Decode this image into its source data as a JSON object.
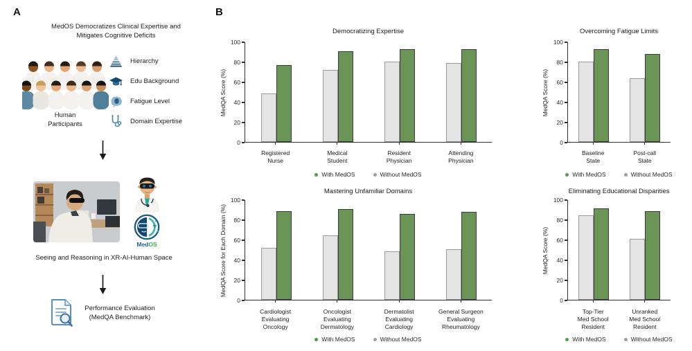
{
  "panel_a": {
    "label": "A",
    "title": "MedOS Democratizes Clinical Expertise and\nMitigates Cognitive Deficits",
    "participants_label": "Human\nParticipants",
    "factors": [
      {
        "icon": "hierarchy-pyramid-icon",
        "label": "Hierarchy"
      },
      {
        "icon": "graduation-cap-icon",
        "label": "Edu Background"
      },
      {
        "icon": "brain-icon",
        "label": "Fatigue Level"
      },
      {
        "icon": "stethoscope-icon",
        "label": "Domain Expertise"
      }
    ],
    "medos_logo": {
      "icon": "medos-logo-icon",
      "med": "Med",
      "os": "OS"
    },
    "xr_caption": "Seeing and Reasoning in XR-AI-Human Space",
    "evaluation_caption": "Performance Evaluation\n(MedQA Benchmark)"
  },
  "panel_b": {
    "label": "B"
  },
  "colors": {
    "with_medos_fill": "#6b9556",
    "with_medos_border": "#3d3d3d",
    "without_medos_fill": "#e4e4e4",
    "without_medos_border": "#9a9a9a",
    "legend_with_dot": "#559a4f",
    "legend_without_dot": "#9e9e9e",
    "axis": "#2e2e2e"
  },
  "chart_data": [
    {
      "type": "bar",
      "title": "Democratizing Expertise",
      "xlabel": "",
      "ylabel": "MedQA Score (%)",
      "ylim": [
        0,
        100
      ],
      "yticks": [
        0,
        20,
        40,
        60,
        80,
        100
      ],
      "grid": false,
      "legend_position": "bottom",
      "legend": [
        "With MedOS",
        "Without MedOS"
      ],
      "categories": [
        "Registered\nNurse",
        "Medical\nStudent",
        "Resident\nPhysician",
        "Attending\nPhysician"
      ],
      "series": [
        {
          "name": "Without MedOS",
          "values": [
            49,
            72,
            81,
            79
          ]
        },
        {
          "name": "With MedOS",
          "values": [
            77,
            91,
            93,
            93
          ]
        }
      ]
    },
    {
      "type": "bar",
      "title": "Overcoming Fatigue Limits",
      "xlabel": "",
      "ylabel": "MedQA Score (%)",
      "ylim": [
        0,
        100
      ],
      "yticks": [
        0,
        20,
        40,
        60,
        80,
        100
      ],
      "grid": false,
      "legend_position": "bottom",
      "legend": [
        "With MedOS",
        "Without MedOS"
      ],
      "categories": [
        "Baseline\nState",
        "Post-call\nState"
      ],
      "series": [
        {
          "name": "Without MedOS",
          "values": [
            81,
            64
          ]
        },
        {
          "name": "With MedOS",
          "values": [
            93,
            88
          ]
        }
      ]
    },
    {
      "type": "bar",
      "title": "Mastering Unfamiliar Domains",
      "xlabel": "",
      "ylabel": "MedQA Score for Each Domain (%)",
      "ylim": [
        0,
        100
      ],
      "yticks": [
        0,
        20,
        40,
        60,
        80,
        100
      ],
      "grid": false,
      "legend_position": "bottom",
      "legend": [
        "With MedOS",
        "Without MedOS"
      ],
      "categories": [
        "Cardiologist\nEvaluating\nOncology",
        "Oncologist\nEvaluating\nDermatology",
        "Dermatolist\nEvaluating\nCardiology",
        "General Surgeon\nEvaluating\nRheumatology"
      ],
      "series": [
        {
          "name": "Without MedOS",
          "values": [
            52,
            65,
            49,
            51
          ]
        },
        {
          "name": "With MedOS",
          "values": [
            89,
            91,
            86,
            88
          ]
        }
      ]
    },
    {
      "type": "bar",
      "title": "Eliminating Educational Disparities",
      "xlabel": "",
      "ylabel": "MedQA Score (%)",
      "ylim": [
        0,
        100
      ],
      "yticks": [
        0,
        20,
        40,
        60,
        80,
        100
      ],
      "grid": false,
      "legend_position": "bottom",
      "legend": [
        "With MedOS",
        "Without MedOS"
      ],
      "categories": [
        "Top-Tier\nMed School\nResident",
        "Unranked\nMed School\nResident"
      ],
      "series": [
        {
          "name": "Without MedOS",
          "values": [
            85,
            61
          ]
        },
        {
          "name": "With MedOS",
          "values": [
            92,
            89
          ]
        }
      ]
    }
  ]
}
